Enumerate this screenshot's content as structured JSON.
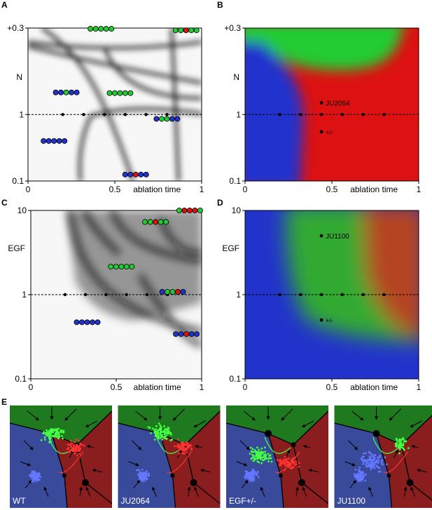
{
  "panel_letters": {
    "A": "A",
    "B": "B",
    "C": "C",
    "D": "D",
    "E": "E"
  },
  "colors": {
    "blue": "#2233cc",
    "green": "#22cc33",
    "red": "#dd1111",
    "field_blue": "#3a4a9a",
    "field_green": "#1f7a1f",
    "field_red": "#8a1d1d",
    "traj_green": "#44ff44",
    "traj_red": "#ff3333",
    "traj_blue": "#6677ff"
  },
  "icons": {
    "state_dot": "circle",
    "point": "black-dot",
    "arrow": "arrowhead"
  },
  "chart_data": [
    {
      "id": "A",
      "type": "heatmap",
      "xlabel": "ablation time",
      "ylabel": "N",
      "xticks": [
        "0",
        "0.5",
        "1"
      ],
      "yticks": [
        "+0.3",
        "1",
        "0.1"
      ],
      "xlim": [
        0,
        1
      ],
      "ylog": true,
      "baseline_y": 1,
      "baseline_points_x": [
        0.2,
        0.32,
        0.44,
        0.56,
        0.68,
        0.8
      ],
      "state_glyphs": [
        {
          "x": 0.42,
          "y": 19.5,
          "colors": [
            "green",
            "green",
            "green",
            "green",
            "green"
          ]
        },
        {
          "x": 0.91,
          "y": 18.5,
          "colors": [
            "green",
            "green",
            "red",
            "green",
            "green"
          ]
        },
        {
          "x": 0.22,
          "y": 2.15,
          "colors": [
            "blue",
            "blue",
            "green",
            "blue",
            "blue"
          ]
        },
        {
          "x": 0.53,
          "y": 2.1,
          "colors": [
            "green",
            "green",
            "green",
            "green",
            "green"
          ]
        },
        {
          "x": 0.8,
          "y": 0.86,
          "colors": [
            "blue",
            "green",
            "green",
            "blue",
            "blue"
          ]
        },
        {
          "x": 0.15,
          "y": 0.4,
          "colors": [
            "blue",
            "blue",
            "blue",
            "blue",
            "blue"
          ]
        },
        {
          "x": 0.62,
          "y": 0.125,
          "colors": [
            "blue",
            "blue",
            "red",
            "blue",
            "blue"
          ]
        }
      ]
    },
    {
      "id": "B",
      "type": "heatmap",
      "xlabel": "ablation time",
      "ylabel": "N",
      "xticks": [
        "0",
        "0.5",
        "1"
      ],
      "yticks": [
        "+0.3",
        "1",
        "0.1"
      ],
      "xlim": [
        0,
        1
      ],
      "ylog": true,
      "baseline_y": 1,
      "baseline_points_x": [
        0.2,
        0.32,
        0.44,
        0.56,
        0.68,
        0.8
      ],
      "annotations": [
        {
          "label": "JU2064",
          "x": 0.44,
          "y": 1.5
        },
        {
          "label": "+/-",
          "x": 0.44,
          "y": 0.55
        }
      ]
    },
    {
      "id": "C",
      "type": "heatmap",
      "xlabel": "ablation time",
      "ylabel": "EGF",
      "xticks": [
        "0",
        "0.5",
        "1"
      ],
      "yticks": [
        "10",
        "1",
        "0.1"
      ],
      "xlim": [
        0,
        1
      ],
      "ylog": true,
      "baseline_y": 1,
      "baseline_points_x": [
        0.2,
        0.32,
        0.44,
        0.56,
        0.68,
        0.8
      ],
      "state_glyphs": [
        {
          "x": 0.93,
          "y": 10,
          "colors": [
            "green",
            "red",
            "red",
            "red",
            "green"
          ]
        },
        {
          "x": 0.73,
          "y": 7.3,
          "colors": [
            "green",
            "green",
            "red",
            "green",
            "green"
          ]
        },
        {
          "x": 0.53,
          "y": 2.15,
          "colors": [
            "green",
            "green",
            "green",
            "green",
            "green"
          ]
        },
        {
          "x": 0.83,
          "y": 1.08,
          "colors": [
            "blue",
            "green",
            "green",
            "red",
            "blue"
          ]
        },
        {
          "x": 0.33,
          "y": 0.47,
          "colors": [
            "blue",
            "blue",
            "blue",
            "blue",
            "blue"
          ]
        },
        {
          "x": 0.91,
          "y": 0.34,
          "colors": [
            "blue",
            "blue",
            "red",
            "blue",
            "blue"
          ]
        }
      ]
    },
    {
      "id": "D",
      "type": "heatmap",
      "xlabel": "ablation time",
      "ylabel": "EGF",
      "xticks": [
        "0",
        "0.5",
        "1"
      ],
      "yticks": [
        "10",
        "1",
        "0.1"
      ],
      "xlim": [
        0,
        1
      ],
      "ylog": true,
      "baseline_y": 1,
      "baseline_points_x": [
        0.2,
        0.32,
        0.44,
        0.56,
        0.68,
        0.8
      ],
      "annotations": [
        {
          "label": "JU1100",
          "x": 0.44,
          "y": 5
        },
        {
          "label": "+/-",
          "x": 0.44,
          "y": 0.5
        }
      ]
    }
  ],
  "panel_e": {
    "labels": [
      "WT",
      "JU2064",
      "EGF+/-",
      "JU1100"
    ]
  }
}
